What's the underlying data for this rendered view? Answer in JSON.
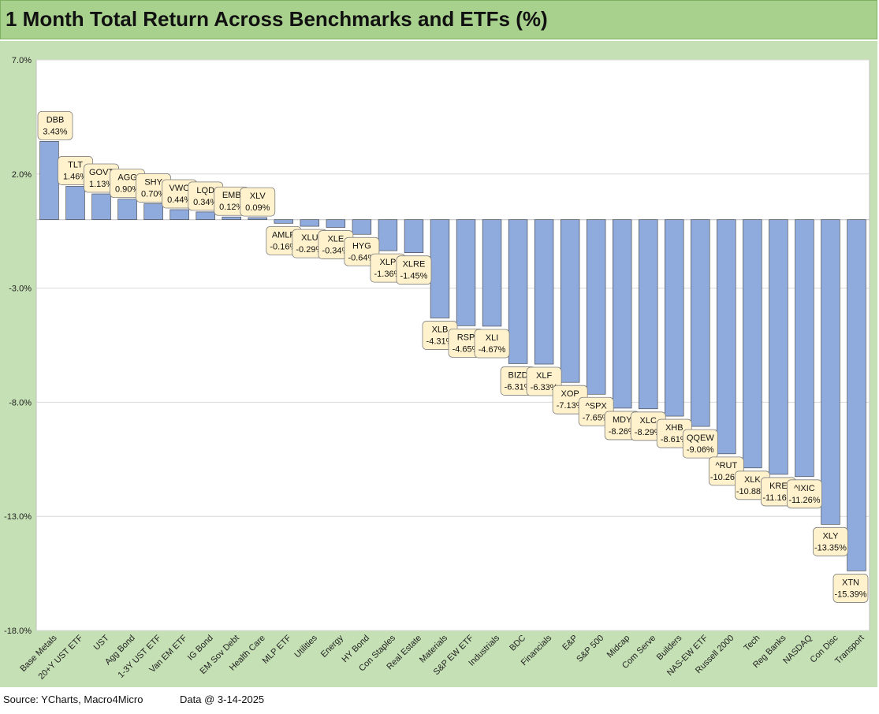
{
  "title": "1 Month Total Return Across Benchmarks and ETFs (%)",
  "footer": {
    "source": "Source: YCharts, Macro4Micro",
    "data_date": "Data @ 3-14-2025"
  },
  "colors": {
    "bar": "#8faadc",
    "bar_stroke": "#3b3b3b",
    "label_fill": "#fff2cc",
    "title_bg": "#a9d18e",
    "frame_bg": "#c5e0b4"
  },
  "chart_data": {
    "type": "bar",
    "title": "1 Month Total Return Across Benchmarks and ETFs (%)",
    "xlabel": "",
    "ylabel": "",
    "ylim": [
      -18,
      7
    ],
    "yticks": [
      "7.0%",
      "2.0%",
      "-3.0%",
      "-8.0%",
      "-13.0%",
      "-18.0%"
    ],
    "ytick_values": [
      7,
      2,
      -3,
      -8,
      -13,
      -18
    ],
    "grid": true,
    "categories": [
      "Base Metals",
      "20+Y UST ETF",
      "UST",
      "Agg Bond",
      "1-3Y UST ETF",
      "Van EM ETF",
      "IG Bond",
      "EM Sov Debt",
      "Health Care",
      "MLP ETF",
      "Utilities",
      "Energy",
      "HY Bond",
      "Con Staples",
      "Real Estate",
      "Materials",
      "S&P EW ETF",
      "Industrials",
      "BDC",
      "Financials",
      "E&P",
      "S&P 500",
      "Midcap",
      "Com Serve",
      "Builders",
      "NAS-EW ETF",
      "Russell 2000",
      "Tech",
      "Reg Banks",
      "NASDAQ",
      "Con Disc",
      "Transport"
    ],
    "tickers": [
      "DBB",
      "TLT",
      "GOVT",
      "AGG",
      "SHY",
      "VWO",
      "LQD",
      "EMB",
      "XLV",
      "AMLP",
      "XLU",
      "XLE",
      "HYG",
      "XLP",
      "XLRE",
      "XLB",
      "RSP",
      "XLI",
      "BIZD",
      "XLF",
      "XOP",
      "^SPX",
      "MDY",
      "XLC",
      "XHB",
      "QQEW",
      "^RUT",
      "XLK",
      "KRE",
      "^IXIC",
      "XLY",
      "XTN"
    ],
    "value_labels": [
      "3.43%",
      "1.46%",
      "1.13%",
      "0.90%",
      "0.70%",
      "0.44%",
      "0.34%",
      "0.12%",
      "0.09%",
      "-0.16%",
      "-0.29%",
      "-0.34%",
      "-0.64%",
      "-1.36%",
      "-1.45%",
      "-4.31%",
      "-4.65%",
      "-4.67%",
      "-6.31%",
      "-6.33%",
      "-7.13%",
      "-7.65%",
      "-8.26%",
      "-8.29%",
      "-8.61%",
      "-9.06%",
      "-10.26%",
      "-10.88%",
      "-11.16%",
      "-11.26%",
      "-13.35%",
      "-15.39%"
    ],
    "values": [
      3.43,
      1.46,
      1.13,
      0.9,
      0.7,
      0.44,
      0.34,
      0.12,
      0.09,
      -0.16,
      -0.29,
      -0.34,
      -0.64,
      -1.36,
      -1.45,
      -4.31,
      -4.65,
      -4.67,
      -6.31,
      -6.33,
      -7.13,
      -7.65,
      -8.26,
      -8.29,
      -8.61,
      -9.06,
      -10.26,
      -10.88,
      -11.16,
      -11.26,
      -13.35,
      -15.39
    ]
  }
}
